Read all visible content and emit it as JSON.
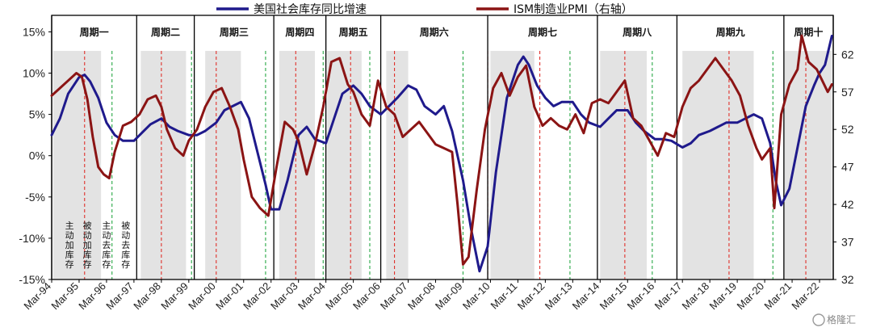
{
  "chart_data": {
    "type": "line",
    "title": "",
    "legend_position": "top-center",
    "x_tick_labels": [
      "Mar-94",
      "Mar-95",
      "Mar-96",
      "Mar-97",
      "Mar-98",
      "Mar-99",
      "Mar-00",
      "Mar-01",
      "Mar-02",
      "Mar-03",
      "Mar-04",
      "Mar-05",
      "Mar-06",
      "Mar-07",
      "Mar-08",
      "Mar-09",
      "Mar-10",
      "Mar-11",
      "Mar-12",
      "Mar-13",
      "Mar-14",
      "Mar-15",
      "Mar-16",
      "Mar-17",
      "Mar-18",
      "Mar-19",
      "Mar-20",
      "Mar-21",
      "Mar-22"
    ],
    "xlim": [
      1994.0,
      2022.5
    ],
    "y_left": {
      "ylim": [
        -15,
        17
      ],
      "ticks": [
        15,
        10,
        5,
        0,
        -5,
        -10,
        -15
      ],
      "tick_labels": [
        "15%",
        "10%",
        "5%",
        "0%",
        "-5%",
        "-10%",
        "-15%"
      ]
    },
    "y_right": {
      "ylim": [
        32,
        67.2
      ],
      "ticks": [
        62,
        57,
        52,
        47,
        42,
        37,
        32
      ],
      "tick_labels": [
        "62",
        "57",
        "52",
        "47",
        "42",
        "37",
        "32"
      ]
    },
    "series": [
      {
        "name": "美国社会库存同比增速",
        "axis": "left",
        "color": "#1f1a8c",
        "x": [
          1994.0,
          1994.3,
          1994.6,
          1995.0,
          1995.2,
          1995.4,
          1995.7,
          1996.0,
          1996.3,
          1996.6,
          1997.0,
          1997.3,
          1997.6,
          1998.0,
          1998.3,
          1998.6,
          1999.0,
          1999.3,
          1999.6,
          2000.0,
          2000.3,
          2000.6,
          2000.9,
          2001.2,
          2001.5,
          2001.8,
          2002.0,
          2002.3,
          2002.6,
          2003.0,
          2003.3,
          2003.6,
          2004.0,
          2004.3,
          2004.6,
          2005.0,
          2005.3,
          2005.6,
          2006.0,
          2006.3,
          2006.6,
          2007.0,
          2007.3,
          2007.6,
          2008.0,
          2008.3,
          2008.6,
          2009.0,
          2009.3,
          2009.6,
          2009.9,
          2010.2,
          2010.6,
          2011.0,
          2011.2,
          2011.4,
          2011.7,
          2012.0,
          2012.3,
          2012.6,
          2013.0,
          2013.3,
          2013.6,
          2014.0,
          2014.3,
          2014.6,
          2015.0,
          2015.3,
          2015.6,
          2016.0,
          2016.3,
          2016.6,
          2017.0,
          2017.3,
          2017.6,
          2018.0,
          2018.3,
          2018.6,
          2019.0,
          2019.3,
          2019.6,
          2019.9,
          2020.2,
          2020.4,
          2020.6,
          2020.9,
          2021.2,
          2021.5,
          2021.8,
          2022.0,
          2022.2,
          2022.45
        ],
        "values": [
          2.5,
          4.5,
          7.5,
          9.5,
          9.8,
          9.0,
          7.0,
          4.0,
          2.5,
          1.8,
          1.8,
          2.8,
          3.8,
          4.5,
          3.5,
          3.0,
          2.5,
          2.5,
          3.0,
          4.0,
          5.5,
          6.0,
          6.5,
          4.5,
          0.5,
          -3.5,
          -6.5,
          -6.5,
          -3.0,
          2.5,
          3.5,
          2.0,
          1.5,
          4.5,
          7.5,
          8.5,
          7.5,
          6.0,
          5.0,
          6.0,
          7.0,
          8.5,
          8.0,
          6.0,
          5.0,
          6.0,
          3.0,
          -3.0,
          -9.0,
          -14.0,
          -11.0,
          -2.0,
          7.0,
          11.0,
          12.0,
          11.0,
          8.5,
          7.0,
          6.0,
          6.5,
          6.5,
          5.0,
          4.0,
          3.5,
          4.5,
          5.5,
          5.5,
          4.0,
          3.0,
          2.0,
          2.0,
          1.8,
          1.0,
          1.5,
          2.5,
          3.0,
          3.5,
          4.0,
          4.0,
          4.5,
          5.0,
          4.5,
          1.5,
          -3.0,
          -6.0,
          -4.0,
          1.0,
          6.0,
          8.5,
          10.0,
          11.0,
          14.5
        ]
      },
      {
        "name": "ISM制造业PMI（右轴）",
        "axis": "right",
        "color": "#8b1414",
        "x": [
          1994.0,
          1994.3,
          1994.6,
          1994.9,
          1995.1,
          1995.3,
          1995.5,
          1995.7,
          1995.9,
          1996.1,
          1996.3,
          1996.6,
          1996.9,
          1997.2,
          1997.5,
          1997.8,
          1998.0,
          1998.2,
          1998.5,
          1998.8,
          1999.0,
          1999.3,
          1999.6,
          1999.9,
          2000.2,
          2000.5,
          2000.8,
          2001.0,
          2001.3,
          2001.6,
          2001.9,
          2002.2,
          2002.5,
          2002.8,
          2003.0,
          2003.3,
          2003.6,
          2003.9,
          2004.2,
          2004.5,
          2004.8,
          2005.0,
          2005.3,
          2005.6,
          2005.9,
          2006.2,
          2006.5,
          2006.8,
          2007.1,
          2007.4,
          2007.7,
          2008.0,
          2008.3,
          2008.6,
          2008.8,
          2009.0,
          2009.2,
          2009.5,
          2009.8,
          2010.1,
          2010.4,
          2010.7,
          2011.0,
          2011.3,
          2011.6,
          2011.9,
          2012.2,
          2012.5,
          2012.8,
          2013.1,
          2013.4,
          2013.7,
          2014.0,
          2014.3,
          2014.6,
          2014.9,
          2015.2,
          2015.5,
          2015.8,
          2016.1,
          2016.4,
          2016.7,
          2017.0,
          2017.3,
          2017.6,
          2017.9,
          2018.2,
          2018.5,
          2018.8,
          2019.1,
          2019.4,
          2019.7,
          2019.9,
          2020.2,
          2020.35,
          2020.6,
          2020.9,
          2021.2,
          2021.35,
          2021.6,
          2021.9,
          2022.1,
          2022.3,
          2022.45
        ],
        "values": [
          56.5,
          57.5,
          58.5,
          59.5,
          59.0,
          56.0,
          51.0,
          47.0,
          46.0,
          45.5,
          49.0,
          52.5,
          53.0,
          54.0,
          56.0,
          56.5,
          55.0,
          52.0,
          49.5,
          48.5,
          50.5,
          52.0,
          55.0,
          57.0,
          57.5,
          55.0,
          52.0,
          48.0,
          43.0,
          41.5,
          40.5,
          47.0,
          53.0,
          52.0,
          50.5,
          46.0,
          50.0,
          55.0,
          61.0,
          61.5,
          58.0,
          57.0,
          54.0,
          52.5,
          58.5,
          55.0,
          54.0,
          51.0,
          52.0,
          53.0,
          51.5,
          50.0,
          49.5,
          49.0,
          42.0,
          34.0,
          35.0,
          44.0,
          52.0,
          57.5,
          59.5,
          56.5,
          59.0,
          60.5,
          55.0,
          52.5,
          53.5,
          52.5,
          52.0,
          54.0,
          51.5,
          55.5,
          56.0,
          55.5,
          57.0,
          58.5,
          53.5,
          52.5,
          50.5,
          48.5,
          51.5,
          51.0,
          55.0,
          57.5,
          58.5,
          60.0,
          61.5,
          60.0,
          58.5,
          56.5,
          52.5,
          49.5,
          48.0,
          49.5,
          41.5,
          54.0,
          58.0,
          60.0,
          64.5,
          61.0,
          60.0,
          58.5,
          57.0,
          58.0
        ]
      }
    ],
    "cycle_boundaries": [
      1994.0,
      1997.1,
      1999.2,
      2002.1,
      2004.0,
      2006.0,
      2009.9,
      2013.9,
      2016.8,
      2020.7,
      2022.5
    ],
    "cycles": [
      "周期一",
      "周期二",
      "周期三",
      "周期四",
      "周期五",
      "周期六",
      "周期七",
      "周期八",
      "周期九",
      "周期十"
    ],
    "shaded_periods": [
      [
        1994.05,
        1995.8
      ],
      [
        1997.25,
        1998.9
      ],
      [
        1999.6,
        2000.9
      ],
      [
        2002.3,
        2003.6
      ],
      [
        2004.05,
        2005.3
      ],
      [
        2006.2,
        2007.0
      ],
      [
        2010.0,
        2011.6
      ],
      [
        2014.0,
        2015.7
      ],
      [
        2017.0,
        2019.6
      ],
      [
        2020.7,
        2022.45
      ]
    ],
    "red_dashed_x": [
      1995.2,
      1998.0,
      2000.0,
      2002.9,
      2004.9,
      2006.5,
      2009.9,
      2011.8,
      2014.9,
      2018.7,
      2021.5
    ],
    "green_dashed_x": [
      1996.2,
      1999.1,
      2001.8,
      2003.9,
      2005.6,
      2009.0,
      2012.9,
      2015.9,
      2020.3
    ],
    "phase_annotations": [
      {
        "x": 1994.65,
        "text": "主动加库存"
      },
      {
        "x": 1995.3,
        "text": "被动加库存"
      },
      {
        "x": 1996.0,
        "text": "主动去库存"
      },
      {
        "x": 1996.7,
        "text": "被动去库存"
      }
    ],
    "watermark": "格隆汇"
  }
}
